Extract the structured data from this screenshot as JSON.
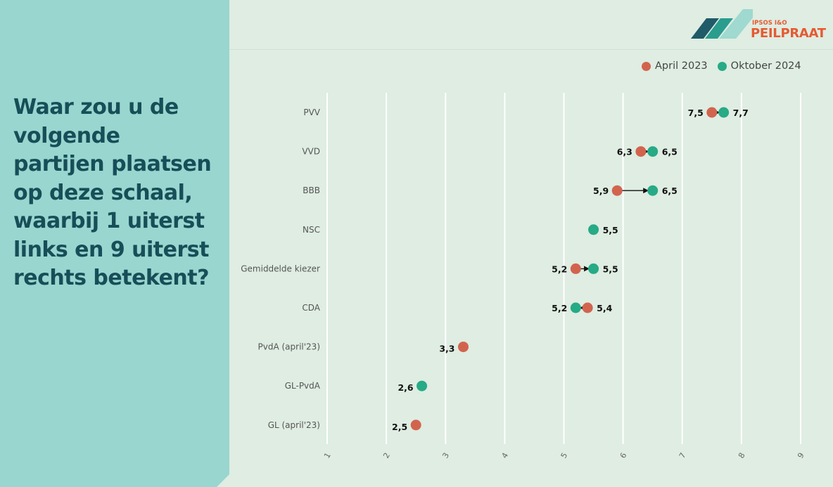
{
  "question": "Waar zou u de volgende partijen plaatsen op deze schaal, waarbij 1 uiterst links en 9 uiterst rechts betekent?",
  "logo": {
    "line1": "IPSOS I&O",
    "line2": "PEILPRAAT",
    "accent": "#e65a32"
  },
  "colors": {
    "april": "#d2644e",
    "oktober": "#27aa86",
    "panel": "#99d6cf",
    "title": "#174e58"
  },
  "chart_data": {
    "type": "dumbbell",
    "series": [
      {
        "name": "April 2023",
        "color": "#d2644e"
      },
      {
        "name": "Oktober 2024",
        "color": "#27aa86"
      }
    ],
    "categories": [
      "PVV",
      "VVD",
      "BBB",
      "NSC",
      "Gemiddelde kiezer",
      "CDA",
      "PvdA (april'23)",
      "GL-PvdA",
      "GL (april'23)"
    ],
    "rows": [
      {
        "category": "PVV",
        "april": 7.5,
        "oktober": 7.7,
        "april_label": "7,5",
        "oktober_label": "7,7"
      },
      {
        "category": "VVD",
        "april": 6.3,
        "oktober": 6.5,
        "april_label": "6,3",
        "oktober_label": "6,5"
      },
      {
        "category": "BBB",
        "april": 5.9,
        "oktober": 6.5,
        "april_label": "5,9",
        "oktober_label": "6,5"
      },
      {
        "category": "NSC",
        "april": null,
        "oktober": 5.5,
        "april_label": null,
        "oktober_label": "5,5"
      },
      {
        "category": "Gemiddelde kiezer",
        "april": 5.2,
        "oktober": 5.5,
        "april_label": "5,2",
        "oktober_label": "5,5"
      },
      {
        "category": "CDA",
        "april": 5.4,
        "oktober": 5.2,
        "april_label": "5,4",
        "oktober_label": "5,2"
      },
      {
        "category": "PvdA (april'23)",
        "april": 3.3,
        "oktober": null,
        "april_label": "3,3",
        "oktober_label": null
      },
      {
        "category": "GL-PvdA",
        "april": null,
        "oktober": 2.6,
        "april_label": null,
        "oktober_label": "2,6"
      },
      {
        "category": "GL (april'23)",
        "april": 2.5,
        "oktober": null,
        "april_label": "2,5",
        "oktober_label": null
      }
    ],
    "x_ticks": [
      "1",
      "2",
      "3",
      "4",
      "5",
      "6",
      "7",
      "8",
      "9"
    ],
    "xlim": [
      1,
      9
    ],
    "grid": true,
    "legend_position": "top-right"
  }
}
